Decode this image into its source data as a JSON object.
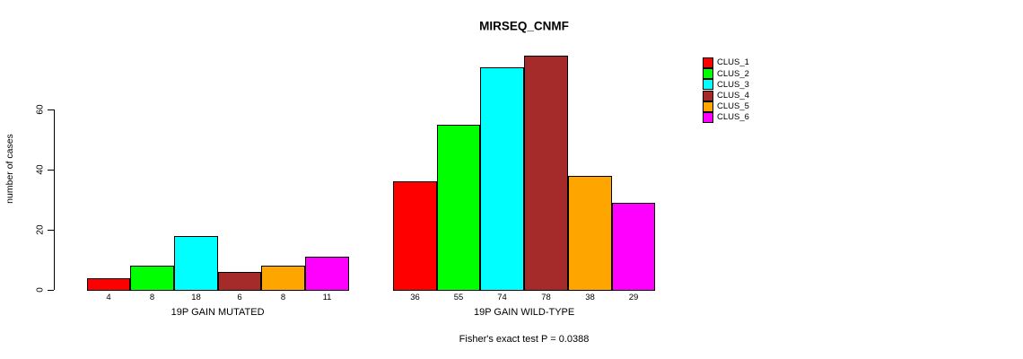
{
  "chart_data": {
    "type": "bar",
    "title": "MIRSEQ_CNMF",
    "ylabel": "number of cases",
    "ylim": [
      0,
      60
    ],
    "yticks": [
      0,
      20,
      40,
      60
    ],
    "grid": false,
    "legend_position": "right",
    "series_names": [
      "CLUS_1",
      "CLUS_2",
      "CLUS_3",
      "CLUS_4",
      "CLUS_5",
      "CLUS_6"
    ],
    "series_colors": [
      "#ff0000",
      "#00ff00",
      "#00ffff",
      "#a52a2a",
      "#ffa500",
      "#ff00ff"
    ],
    "groups": [
      {
        "label": "19P GAIN MUTATED",
        "values": [
          4,
          8,
          18,
          6,
          8,
          11
        ]
      },
      {
        "label": "19P GAIN WILD-TYPE",
        "values": [
          36,
          55,
          74,
          78,
          38,
          29
        ]
      }
    ],
    "bar_value_labels_shown": true,
    "annotation": "Fisher's exact test P = 0.0388",
    "axis_color": "#000000",
    "background_color": "#ffffff"
  }
}
